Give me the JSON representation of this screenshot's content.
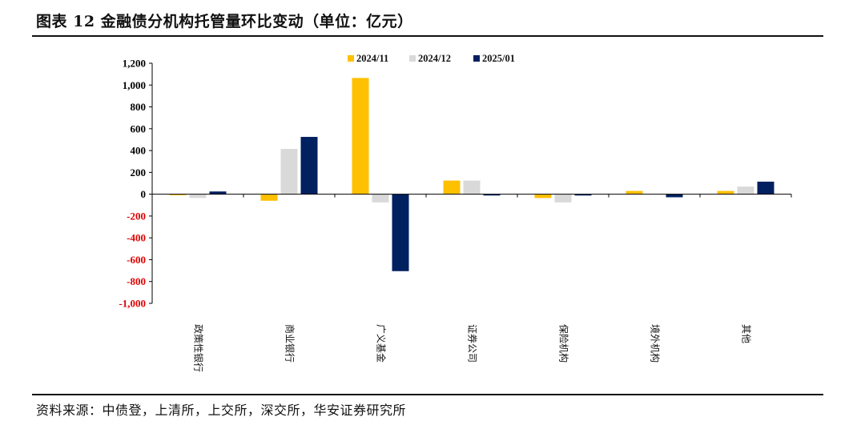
{
  "header": {
    "title": "图表 12 金融债分机构托管量环比变动（单位：亿元）"
  },
  "footer": {
    "source": "资料来源：中债登，上清所，上交所，深交所，华安证券研究所"
  },
  "colors": {
    "series_2024_11": "#FFC000",
    "series_2024_12": "#D9D9D9",
    "series_2025_01": "#002060",
    "negative_tick": "#E00000",
    "positive_tick": "#000000"
  },
  "chart_data": {
    "type": "bar",
    "title": "金融债分机构托管量环比变动（单位：亿元）",
    "xlabel": "",
    "ylabel": "",
    "ylim": [
      -1000,
      1200
    ],
    "yticks": [
      1200,
      1000,
      800,
      600,
      400,
      200,
      0,
      -200,
      -400,
      -600,
      -800,
      -1000
    ],
    "ytick_labels": [
      "1,200",
      "1,000",
      "800",
      "600",
      "400",
      "200",
      "0",
      "-200",
      "-400",
      "-600",
      "-800",
      "-1,000"
    ],
    "legend_position": "top-center",
    "categories": [
      "政策性银行",
      "商业银行",
      "广义基金",
      "证券公司",
      "保险机构",
      "境外机构",
      "其他"
    ],
    "series": [
      {
        "name": "2024/11",
        "values": [
          -10,
          -60,
          1065,
          125,
          -35,
          30,
          30
        ]
      },
      {
        "name": "2024/12",
        "values": [
          -35,
          415,
          -75,
          125,
          -75,
          0,
          70
        ]
      },
      {
        "name": "2025/01",
        "values": [
          25,
          525,
          -705,
          -12,
          -12,
          -28,
          115
        ]
      }
    ]
  }
}
